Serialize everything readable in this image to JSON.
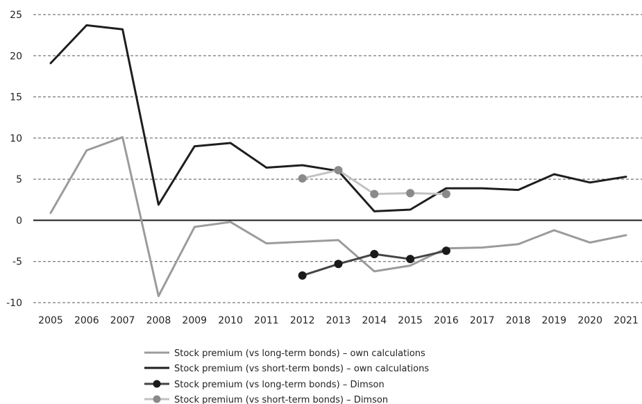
{
  "chart_data": {
    "type": "line",
    "title": "",
    "xlabel": "",
    "ylabel": "",
    "x": [
      2005,
      2006,
      2007,
      2008,
      2009,
      2010,
      2011,
      2012,
      2013,
      2014,
      2015,
      2016,
      2017,
      2018,
      2019,
      2020,
      2021
    ],
    "x_tick_labels": [
      "2005",
      "2006",
      "2007",
      "2008",
      "2009",
      "2010",
      "2011",
      "2012",
      "2013",
      "2014",
      "2015",
      "2016",
      "2017",
      "2018",
      "2019",
      "2020",
      "2021"
    ],
    "ylim": [
      -10,
      25
    ],
    "y_ticks": [
      -10,
      -5,
      0,
      5,
      10,
      15,
      20,
      25
    ],
    "y_tick_labels": [
      "-10",
      "-5",
      "0",
      "5",
      "10",
      "15",
      "20",
      "25"
    ],
    "grid": "horizontal dashed",
    "legend_position": "bottom",
    "series": [
      {
        "name": "Stock premium (vs long-term bonds) – own calculations",
        "color": "#9b9b9b",
        "marker": "none",
        "x": [
          2005,
          2006,
          2007,
          2008,
          2009,
          2010,
          2011,
          2012,
          2013,
          2014,
          2015,
          2016,
          2017,
          2018,
          2019,
          2020,
          2021
        ],
        "values": [
          0.9,
          8.5,
          10.1,
          -9.2,
          -0.8,
          -0.2,
          -2.8,
          -2.6,
          -2.4,
          -6.2,
          -5.5,
          -3.4,
          -3.3,
          -2.9,
          -1.2,
          -2.7,
          -1.8
        ]
      },
      {
        "name": "Stock premium (vs short-term bonds) – own calculations",
        "color": "#1e1e1e",
        "marker": "none",
        "x": [
          2005,
          2006,
          2007,
          2008,
          2009,
          2010,
          2011,
          2012,
          2013,
          2014,
          2015,
          2016,
          2017,
          2018,
          2019,
          2020,
          2021
        ],
        "values": [
          19.1,
          23.7,
          23.2,
          1.9,
          9.0,
          9.4,
          6.4,
          6.7,
          6.0,
          1.1,
          1.3,
          3.9,
          3.9,
          3.7,
          5.6,
          4.6,
          5.3
        ]
      },
      {
        "name": "Stock premium (vs long-term bonds) – Dimson",
        "color": "#1a1a1a",
        "line_color": "#444444",
        "marker": "circle",
        "x": [
          2012,
          2013,
          2014,
          2015,
          2016
        ],
        "values": [
          -6.7,
          -5.3,
          -4.1,
          -4.7,
          -3.7
        ]
      },
      {
        "name": "Stock premium (vs short-term bonds) – Dimson",
        "color": "#8a8a8a",
        "line_color": "#c2c2c2",
        "marker": "circle",
        "x": [
          2012,
          2013,
          2014,
          2015,
          2016
        ],
        "values": [
          5.1,
          6.1,
          3.2,
          3.3,
          3.2
        ]
      }
    ]
  }
}
